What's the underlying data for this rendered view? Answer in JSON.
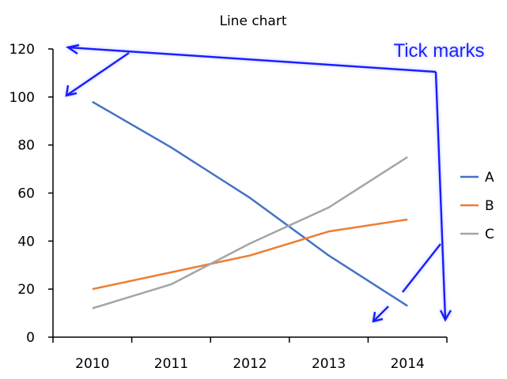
{
  "chart_data": {
    "type": "line",
    "title": "Line chart",
    "xlabel": "",
    "ylabel": "",
    "categories": [
      "2010",
      "2011",
      "2012",
      "2013",
      "2014"
    ],
    "ylim": [
      0,
      120
    ],
    "yticks": [
      0,
      20,
      40,
      60,
      80,
      100,
      120
    ],
    "grid": false,
    "legend": "right",
    "series": [
      {
        "name": "A",
        "color": "#4472c4",
        "values": [
          98,
          79,
          58,
          34,
          13
        ]
      },
      {
        "name": "B",
        "color": "#ed7d31",
        "values": [
          20,
          27,
          34,
          44,
          49
        ]
      },
      {
        "name": "C",
        "color": "#a5a5a5",
        "values": [
          12,
          22,
          39,
          54,
          75
        ]
      }
    ]
  },
  "annotation": {
    "text": "Tick marks",
    "color": "#1f1fff"
  }
}
